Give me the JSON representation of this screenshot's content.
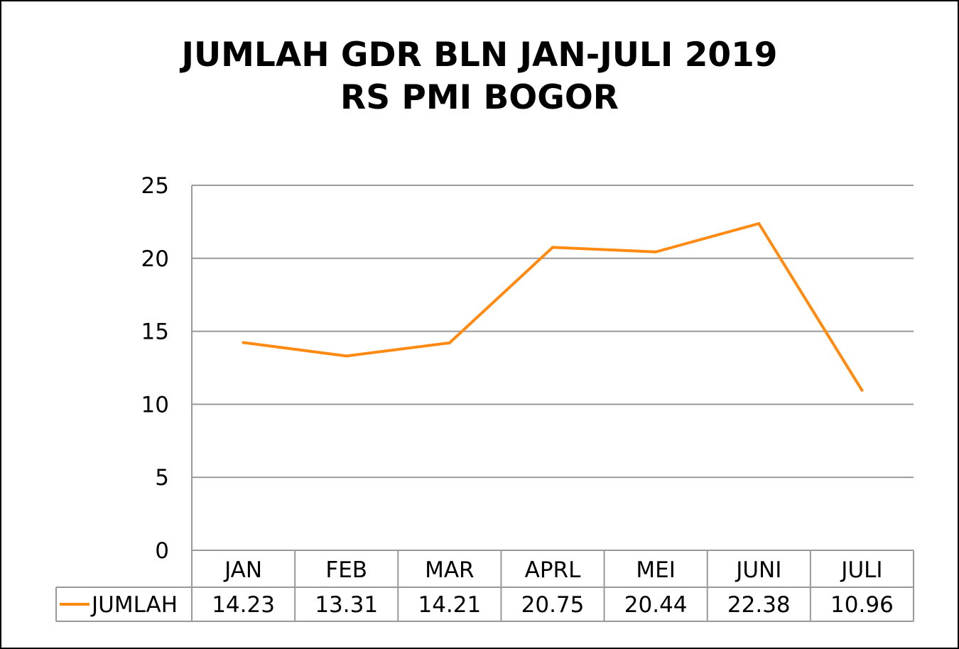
{
  "chart_data": {
    "type": "line",
    "title": "JUMLAH GDR BLN JAN-JULI 2019",
    "subtitle": "RS PMI BOGOR",
    "categories": [
      "JAN",
      "FEB",
      "MAR",
      "APRL",
      "MEI",
      "JUNI",
      "JULI"
    ],
    "series": [
      {
        "name": "JUMLAH",
        "values": [
          14.23,
          13.31,
          14.21,
          20.75,
          20.44,
          22.38,
          10.96
        ],
        "value_labels": [
          "14.23",
          "13.31",
          "14.21",
          "20.75",
          "20.44",
          "22.38",
          "10.96"
        ],
        "color": "#FF8A12"
      }
    ],
    "ylim": [
      0,
      25
    ],
    "yticks": [
      0,
      5,
      10,
      15,
      20,
      25
    ],
    "ytick_labels": [
      "0",
      "5",
      "10",
      "15",
      "20",
      "25"
    ],
    "grid": true,
    "gridline_color": "#999999",
    "data_table": true,
    "legend": "in data table"
  }
}
